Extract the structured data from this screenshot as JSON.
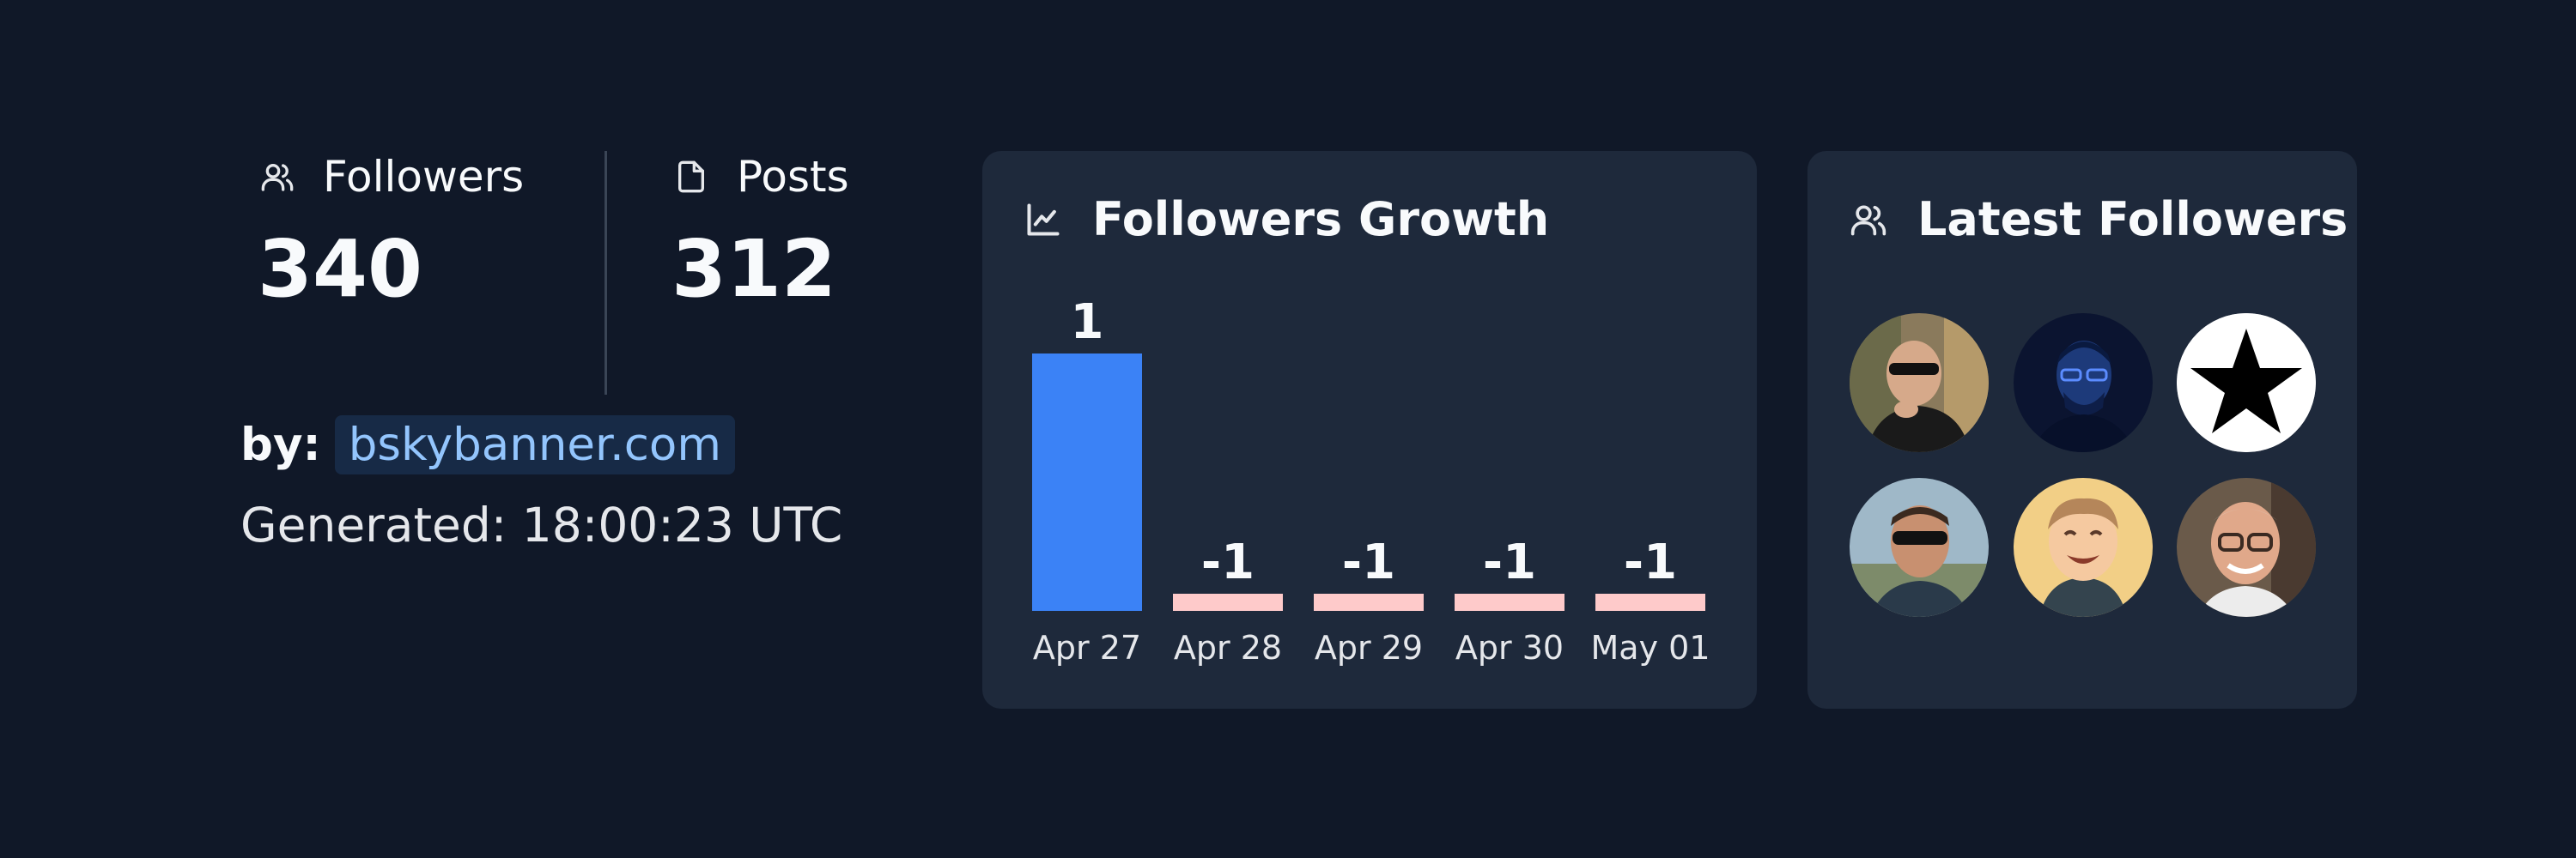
{
  "stats": {
    "followers": {
      "label": "Followers",
      "value": "340",
      "icon": "users-icon"
    },
    "posts": {
      "label": "Posts",
      "value": "312",
      "icon": "document-icon"
    }
  },
  "byline": {
    "prefix": "by:",
    "link": "bskybanner.com"
  },
  "generated": "Generated: 18:00:23 UTC",
  "growth_panel": {
    "title": "Followers Growth",
    "icon": "line-chart-icon"
  },
  "latest_panel": {
    "title": "Latest Followers",
    "icon": "users-icon"
  },
  "colors": {
    "background": "#101828",
    "panel": "#1e293b",
    "positive_bar": "#3b82f6",
    "negative_bar": "#fecaca",
    "link": "#93c5fd"
  },
  "chart_data": {
    "type": "bar",
    "categories": [
      "Apr 27",
      "Apr 28",
      "Apr 29",
      "Apr 30",
      "May 01"
    ],
    "values": [
      1,
      -1,
      -1,
      -1,
      -1
    ],
    "data_labels": [
      "1",
      "-1",
      "-1",
      "-1",
      "-1"
    ],
    "title": "",
    "xlabel": "",
    "ylabel": "",
    "grid": false
  },
  "latest_followers": [
    {
      "name": "follower-avatar-1",
      "icon": "person-sunglasses-photo"
    },
    {
      "name": "follower-avatar-2",
      "icon": "person-dark-blue-photo"
    },
    {
      "name": "follower-avatar-3",
      "icon": "star-icon"
    },
    {
      "name": "follower-avatar-4",
      "icon": "person-sunglasses-photo"
    },
    {
      "name": "follower-avatar-5",
      "icon": "cartoon-person-avatar"
    },
    {
      "name": "follower-avatar-6",
      "icon": "elderly-person-glasses-photo"
    }
  ]
}
